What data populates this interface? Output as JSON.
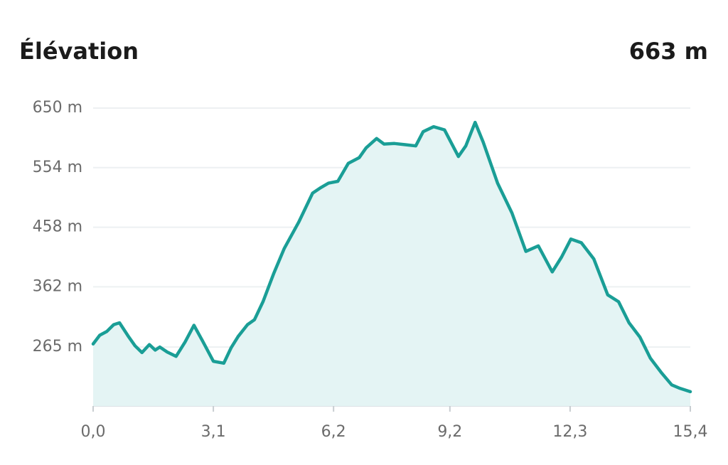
{
  "chart_data": {
    "type": "area",
    "title": "Élévation",
    "summary_label": "663 m",
    "x": [
      0,
      0.17,
      0.35,
      0.53,
      0.68,
      0.9,
      1.08,
      1.26,
      1.45,
      1.6,
      1.72,
      1.91,
      2.14,
      2.37,
      2.6,
      2.82,
      3.1,
      3.37,
      3.56,
      3.74,
      3.98,
      4.16,
      4.38,
      4.66,
      4.93,
      5.3,
      5.66,
      5.85,
      6.07,
      6.31,
      6.58,
      6.86,
      7.04,
      7.31,
      7.5,
      7.77,
      8.05,
      8.32,
      8.51,
      8.78,
      9.06,
      9.42,
      9.61,
      9.85,
      10.06,
      10.43,
      10.8,
      11.16,
      11.48,
      11.84,
      12.08,
      12.32,
      12.59,
      12.91,
      13.27,
      13.55,
      13.82,
      14.1,
      14.37,
      14.65,
      14.92,
      15.11,
      15.4
    ],
    "series": [
      {
        "color": "#1a9e96",
        "fill": "#e4f4f4",
        "values": [
          270,
          284,
          290,
          301,
          304,
          283,
          267,
          256,
          269,
          260,
          265,
          257,
          250,
          273,
          300,
          275,
          242,
          239,
          264,
          282,
          301,
          309,
          338,
          384,
          424,
          466,
          513,
          521,
          529,
          532,
          561,
          570,
          586,
          601,
          592,
          593,
          591,
          589,
          612,
          620,
          615,
          572,
          589,
          627,
          595,
          529,
          481,
          419,
          428,
          386,
          410,
          439,
          433,
          407,
          349,
          338,
          304,
          281,
          247,
          224,
          204,
          199,
          193
        ]
      }
    ],
    "xlim": [
      0,
      15.4
    ],
    "xticks": [
      {
        "value": 0,
        "label": "0,0"
      },
      {
        "value": 3.1,
        "label": "3,1"
      },
      {
        "value": 6.2,
        "label": "6,2"
      },
      {
        "value": 9.2,
        "label": "9,2"
      },
      {
        "value": 12.3,
        "label": "12,3"
      },
      {
        "value": 15.4,
        "label": "15,4"
      }
    ],
    "ylim": [
      170,
      650
    ],
    "yticks": [
      {
        "value": 265,
        "label": "265 m"
      },
      {
        "value": 362,
        "label": "362 m"
      },
      {
        "value": 458,
        "label": "458 m"
      },
      {
        "value": 554,
        "label": "554 m"
      },
      {
        "value": 650,
        "label": "650 m"
      }
    ],
    "grid": true
  }
}
